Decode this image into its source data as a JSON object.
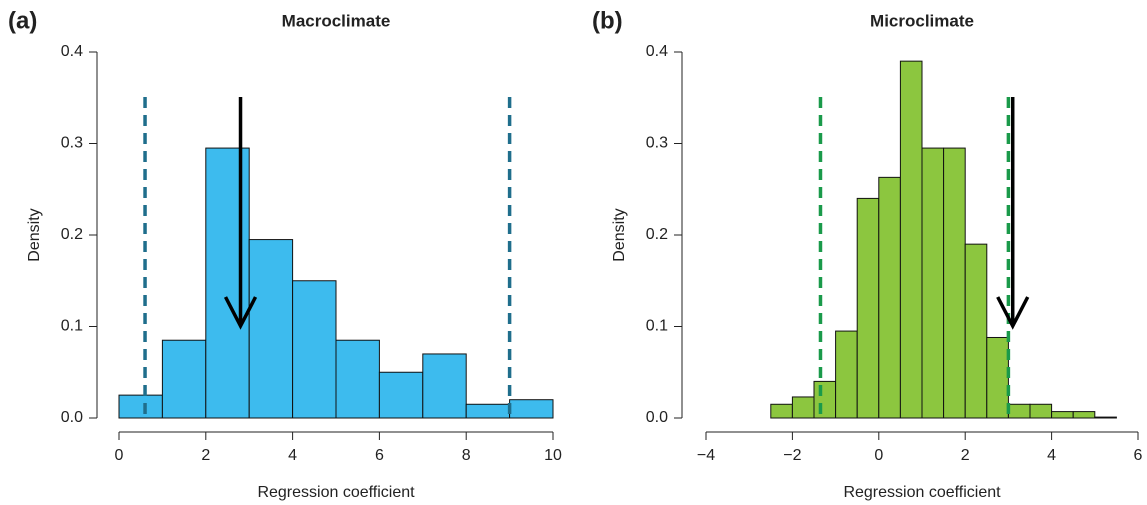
{
  "chart_data": [
    {
      "type": "histogram",
      "panel_label": "(a)",
      "title": "Macroclimate",
      "xlabel": "Regression coefficient",
      "ylabel": "Density",
      "bins": [
        0,
        1,
        2,
        3,
        4,
        5,
        6,
        7,
        8,
        9,
        10
      ],
      "values": [
        0.025,
        0.085,
        0.295,
        0.195,
        0.15,
        0.085,
        0.05,
        0.07,
        0.015,
        0.02
      ],
      "color": "#3dbbee",
      "line_color": "#1f6e8c",
      "ci_lines": [
        0.6,
        9.0
      ],
      "observed": 2.8,
      "xlim": [
        0,
        10
      ],
      "xticks": [
        0,
        2,
        4,
        6,
        8,
        10
      ],
      "ylim": [
        0,
        0.4
      ],
      "yticks": [
        {
          "value": 0,
          "label": "0.0"
        },
        0.1,
        0.2,
        0.3,
        0.4
      ]
    },
    {
      "type": "histogram",
      "panel_label": "(b)",
      "title": "Microclimate",
      "xlabel": "Regression coefficient",
      "ylabel": "Density",
      "bins": [
        -2.5,
        -2,
        -1.5,
        -1,
        -0.5,
        0,
        0.5,
        1,
        1.5,
        2,
        2.5,
        3,
        3.5,
        4,
        4.5,
        5,
        5.5
      ],
      "values": [
        0.015,
        0.023,
        0.04,
        0.095,
        0.24,
        0.263,
        0.39,
        0.295,
        0.295,
        0.19,
        0.088,
        0.015,
        0.015,
        0.007,
        0.007,
        0.001
      ],
      "color": "#8cc63f",
      "line_color": "#1a9a4a",
      "ci_lines": [
        -1.35,
        3.0
      ],
      "observed": 3.1,
      "xlim": [
        -4,
        6
      ],
      "xticks": [
        {
          "value": -4,
          "label": "−4"
        },
        {
          "value": -2,
          "label": "−2"
        },
        0,
        2,
        4,
        6
      ],
      "ylim": [
        0,
        0.4
      ],
      "yticks": [
        {
          "value": 0,
          "label": "0.0"
        },
        0.1,
        0.2,
        0.3,
        0.4
      ]
    }
  ]
}
